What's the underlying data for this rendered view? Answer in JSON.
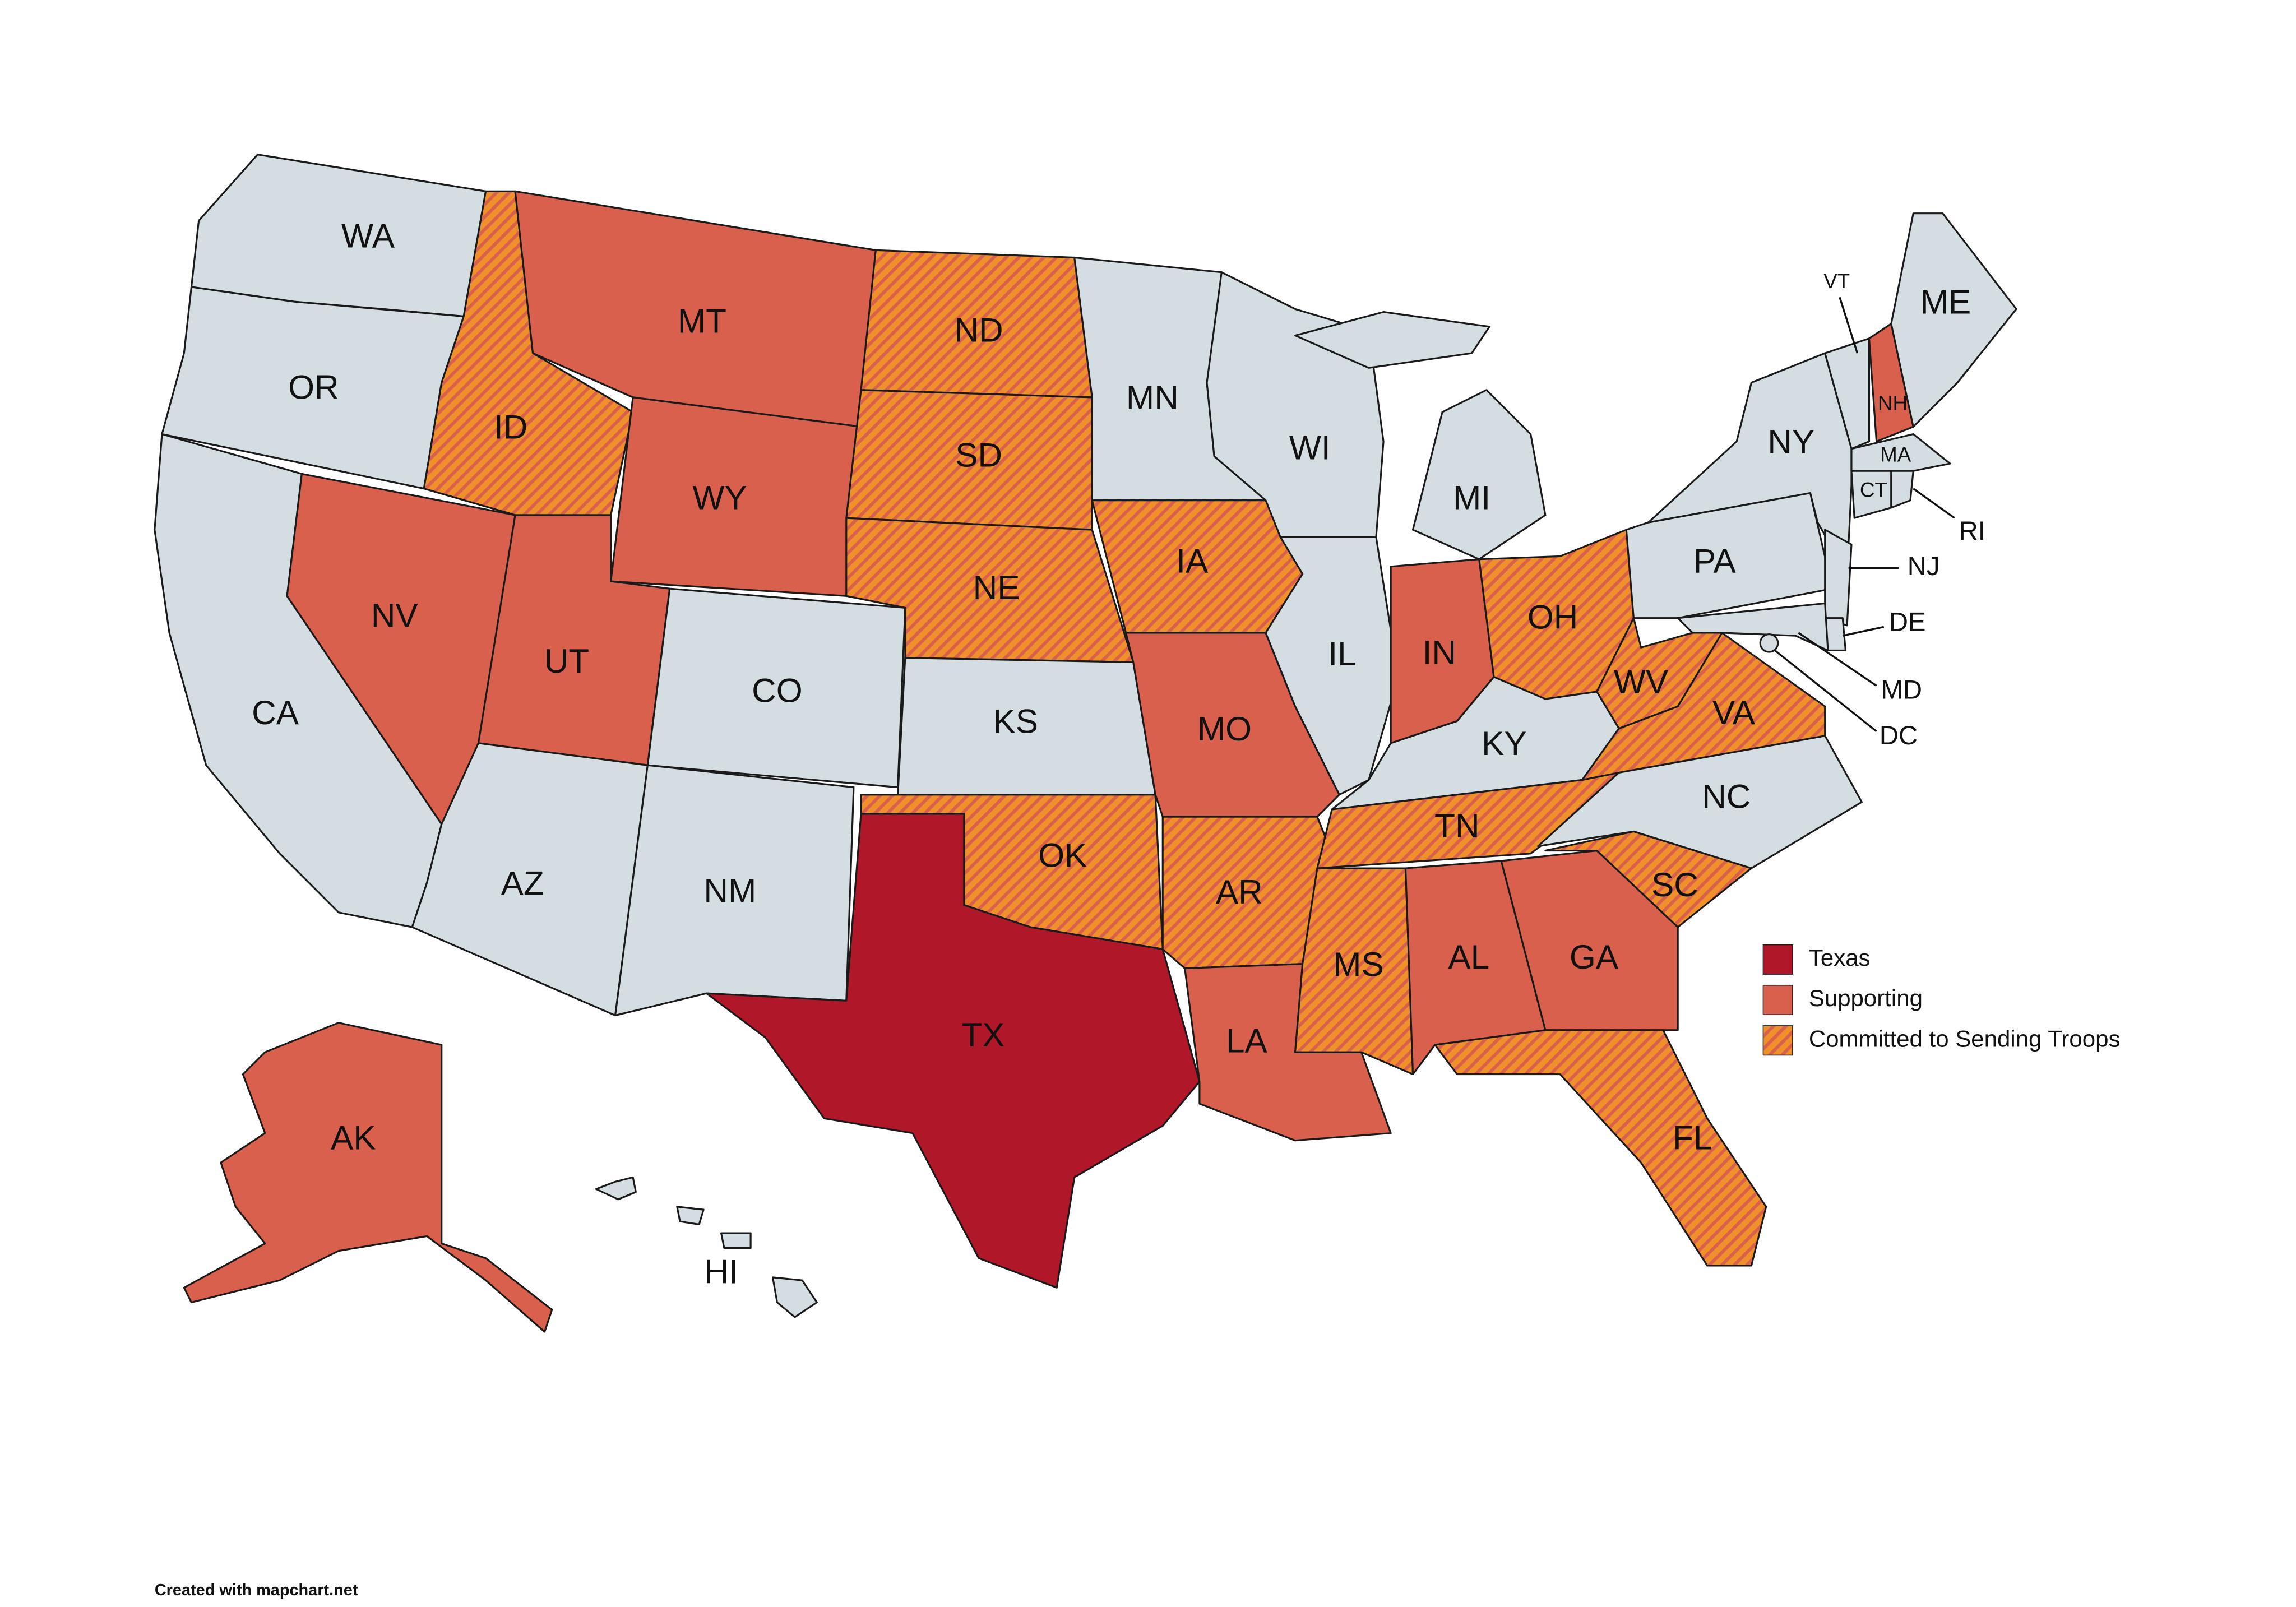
{
  "base_color": "#d4dde1",
  "legend": [
    {
      "label": "Texas",
      "color": "#b0182a"
    },
    {
      "label": "Supporting",
      "color": "#d9604c"
    },
    {
      "label": "Committed to Sending Troops",
      "color": "#f0902a",
      "stripe_color": "#d9604c"
    }
  ],
  "states": [
    {
      "abbr": "WA",
      "status": null
    },
    {
      "abbr": "OR",
      "status": null
    },
    {
      "abbr": "CA",
      "status": null
    },
    {
      "abbr": "NV",
      "status": 1
    },
    {
      "abbr": "ID",
      "status": 2
    },
    {
      "abbr": "MT",
      "status": 1
    },
    {
      "abbr": "WY",
      "status": 1
    },
    {
      "abbr": "UT",
      "status": 1
    },
    {
      "abbr": "CO",
      "status": null
    },
    {
      "abbr": "AZ",
      "status": null
    },
    {
      "abbr": "NM",
      "status": null
    },
    {
      "abbr": "ND",
      "status": 2
    },
    {
      "abbr": "SD",
      "status": 2
    },
    {
      "abbr": "NE",
      "status": 2
    },
    {
      "abbr": "KS",
      "status": null
    },
    {
      "abbr": "OK",
      "status": 2
    },
    {
      "abbr": "TX",
      "status": 0
    },
    {
      "abbr": "MN",
      "status": null
    },
    {
      "abbr": "IA",
      "status": 2
    },
    {
      "abbr": "MO",
      "status": 1
    },
    {
      "abbr": "AR",
      "status": 2
    },
    {
      "abbr": "LA",
      "status": 1
    },
    {
      "abbr": "WI",
      "status": null
    },
    {
      "abbr": "IL",
      "status": null
    },
    {
      "abbr": "MI",
      "status": null
    },
    {
      "abbr": "IN",
      "status": 1
    },
    {
      "abbr": "OH",
      "status": 2
    },
    {
      "abbr": "KY",
      "status": null
    },
    {
      "abbr": "TN",
      "status": 2
    },
    {
      "abbr": "MS",
      "status": 2
    },
    {
      "abbr": "AL",
      "status": 1
    },
    {
      "abbr": "GA",
      "status": 1
    },
    {
      "abbr": "FL",
      "status": 2
    },
    {
      "abbr": "SC",
      "status": 2
    },
    {
      "abbr": "NC",
      "status": null
    },
    {
      "abbr": "VA",
      "status": 2
    },
    {
      "abbr": "WV",
      "status": 2
    },
    {
      "abbr": "PA",
      "status": null
    },
    {
      "abbr": "NY",
      "status": null
    },
    {
      "abbr": "VT",
      "status": null
    },
    {
      "abbr": "NH",
      "status": 1
    },
    {
      "abbr": "ME",
      "status": null
    },
    {
      "abbr": "MA",
      "status": null
    },
    {
      "abbr": "CT",
      "status": null
    },
    {
      "abbr": "RI",
      "status": null
    },
    {
      "abbr": "NJ",
      "status": null
    },
    {
      "abbr": "DE",
      "status": null
    },
    {
      "abbr": "MD",
      "status": null
    },
    {
      "abbr": "DC",
      "status": null
    },
    {
      "abbr": "AK",
      "status": 1
    },
    {
      "abbr": "HI",
      "status": null
    }
  ],
  "footer": "Created with mapchart.net"
}
